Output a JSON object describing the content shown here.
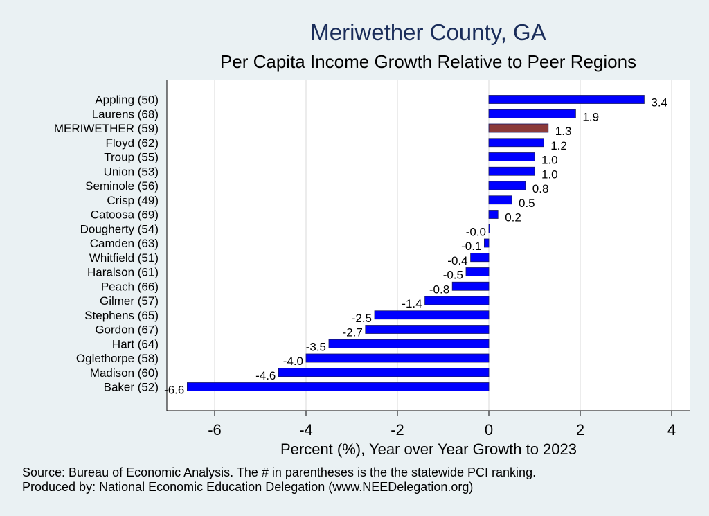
{
  "chart_data": {
    "type": "bar",
    "orientation": "horizontal",
    "title": "Meriwether County, GA",
    "subtitle": "Per Capita Income Growth Relative to Peer Regions",
    "xlabel": "Percent (%), Year over Year Growth to 2023",
    "ylabel": "",
    "xlim": [
      -7,
      4.4
    ],
    "xticks": [
      -6,
      -4,
      -2,
      0,
      2,
      4
    ],
    "grid": true,
    "categories": [
      "Appling (50)",
      "Laurens (68)",
      "MERIWETHER (59)",
      "Floyd (62)",
      "Troup (55)",
      "Union (53)",
      "Seminole (56)",
      "Crisp (49)",
      "Catoosa (69)",
      "Dougherty (54)",
      "Camden (63)",
      "Whitfield (51)",
      "Haralson (61)",
      "Peach (66)",
      "Gilmer (57)",
      "Stephens (65)",
      "Gordon (67)",
      "Hart (64)",
      "Oglethorpe (58)",
      "Madison (60)",
      "Baker (52)"
    ],
    "values": [
      3.4,
      1.9,
      1.3,
      1.2,
      1.0,
      1.0,
      0.8,
      0.5,
      0.2,
      -0.0,
      -0.1,
      -0.4,
      -0.5,
      -0.8,
      -1.4,
      -2.5,
      -2.7,
      -3.5,
      -4.0,
      -4.6,
      -6.6
    ],
    "value_labels": [
      "3.4",
      "1.9",
      "1.3",
      "1.2",
      "1.0",
      "1.0",
      "0.8",
      "0.5",
      "0.2",
      "-0.0",
      "-0.1",
      "-0.4",
      "-0.5",
      "-0.8",
      "-1.4",
      "-2.5",
      "-2.7",
      "-3.5",
      "-4.0",
      "-4.6",
      "-6.6"
    ],
    "highlight": "MERIWETHER (59)",
    "colors": {
      "bar": "#0000ff",
      "highlight": "#8b3a3a",
      "background": "#eaf1f3",
      "plot": "#ffffff",
      "title": "#1a2d5a"
    }
  },
  "footer": {
    "source": "Source: Bureau of Economic Analysis. The # in parentheses is the the statewide PCI ranking.",
    "produced_by": "Produced by: National Economic Education Delegation (www.NEEDelegation.org)"
  }
}
